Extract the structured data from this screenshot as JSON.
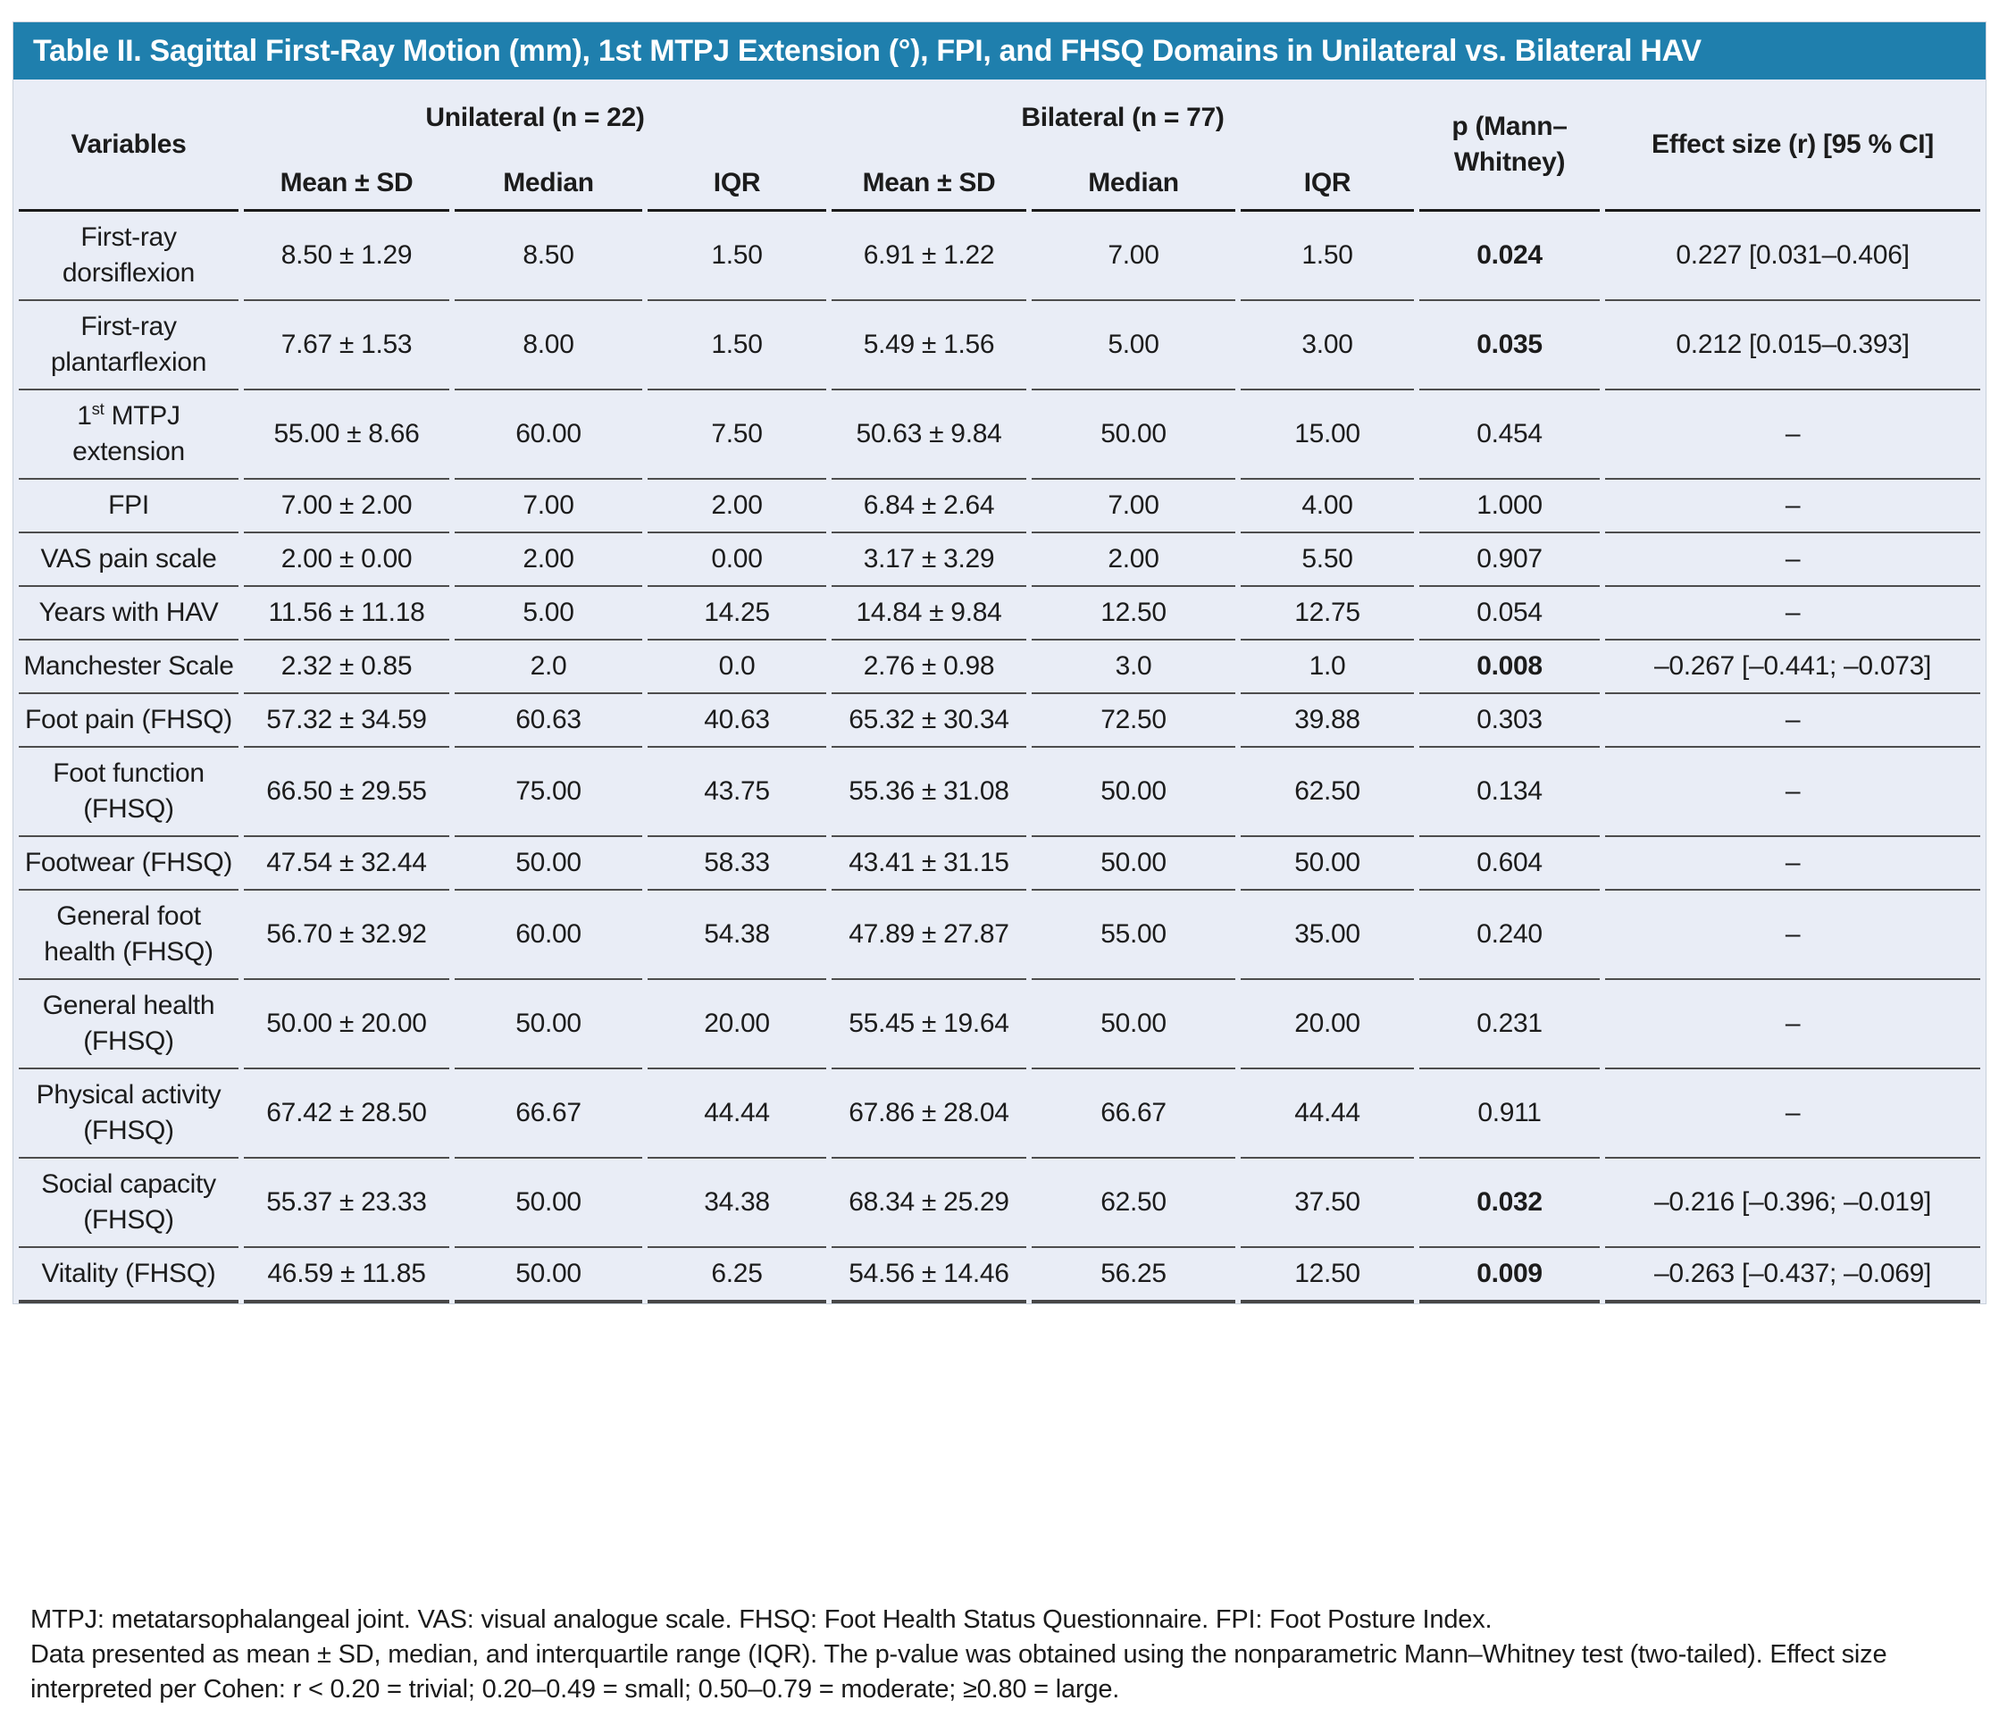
{
  "table": {
    "title": "Table II. Sagittal First-Ray Motion (mm), 1st MTPJ Extension (°), FPI, and FHSQ Domains in Unilateral vs. Bilateral HAV",
    "header": {
      "variables": "Variables",
      "group_unilateral": "Unilateral (n = 22)",
      "group_bilateral": "Bilateral (n = 77)",
      "p_label": "p (Mann–Whitney)",
      "effect_label": "Effect size (r) [95 % CI]",
      "sub": [
        "Mean ± SD",
        "Median",
        "IQR",
        "Mean ± SD",
        "Median",
        "IQR"
      ]
    },
    "rows": [
      {
        "variable": [
          {
            "text": "First-ray dorsiflexion"
          }
        ],
        "cells": [
          "8.50 ± 1.29",
          "8.50",
          "1.50",
          "6.91 ± 1.22",
          "7.00",
          "1.50"
        ],
        "p": "0.024",
        "p_bold": true,
        "effect": "0.227 [0.031–0.406]"
      },
      {
        "variable": [
          {
            "text": "First-ray plantarflexion"
          }
        ],
        "cells": [
          "7.67 ± 1.53",
          "8.00",
          "1.50",
          "5.49 ± 1.56",
          "5.00",
          "3.00"
        ],
        "p": "0.035",
        "p_bold": true,
        "effect": "0.212 [0.015–0.393]"
      },
      {
        "variable": [
          {
            "text": "1"
          },
          {
            "text": "st",
            "sup": true
          },
          {
            "text": " MTPJ extension"
          }
        ],
        "cells": [
          "55.00 ± 8.66",
          "60.00",
          "7.50",
          "50.63 ± 9.84",
          "50.00",
          "15.00"
        ],
        "p": "0.454",
        "p_bold": false,
        "effect": "–"
      },
      {
        "variable": [
          {
            "text": "FPI"
          }
        ],
        "cells": [
          "7.00 ± 2.00",
          "7.00",
          "2.00",
          "6.84 ± 2.64",
          "7.00",
          "4.00"
        ],
        "p": "1.000",
        "p_bold": false,
        "effect": "–"
      },
      {
        "variable": [
          {
            "text": "VAS pain scale"
          }
        ],
        "cells": [
          "2.00 ± 0.00",
          "2.00",
          "0.00",
          "3.17 ± 3.29",
          "2.00",
          "5.50"
        ],
        "p": "0.907",
        "p_bold": false,
        "effect": "–"
      },
      {
        "variable": [
          {
            "text": "Years with HAV"
          }
        ],
        "cells": [
          "11.56 ± 11.18",
          "5.00",
          "14.25",
          "14.84 ± 9.84",
          "12.50",
          "12.75"
        ],
        "p": "0.054",
        "p_bold": false,
        "effect": "–"
      },
      {
        "variable": [
          {
            "text": "Manchester Scale"
          }
        ],
        "cells": [
          "2.32 ± 0.85",
          "2.0",
          "0.0",
          "2.76 ± 0.98",
          "3.0",
          "1.0"
        ],
        "p": "0.008",
        "p_bold": true,
        "effect": "–0.267 [–0.441; –0.073]"
      },
      {
        "variable": [
          {
            "text": "Foot pain (FHSQ)"
          }
        ],
        "cells": [
          "57.32 ± 34.59",
          "60.63",
          "40.63",
          "65.32 ± 30.34",
          "72.50",
          "39.88"
        ],
        "p": "0.303",
        "p_bold": false,
        "effect": "–"
      },
      {
        "variable": [
          {
            "text": "Foot function (FHSQ)"
          }
        ],
        "cells": [
          "66.50 ± 29.55",
          "75.00",
          "43.75",
          "55.36 ± 31.08",
          "50.00",
          "62.50"
        ],
        "p": "0.134",
        "p_bold": false,
        "effect": "–"
      },
      {
        "variable": [
          {
            "text": "Footwear (FHSQ)"
          }
        ],
        "cells": [
          "47.54 ± 32.44",
          "50.00",
          "58.33",
          "43.41 ± 31.15",
          "50.00",
          "50.00"
        ],
        "p": "0.604",
        "p_bold": false,
        "effect": "–"
      },
      {
        "variable": [
          {
            "text": "General foot health (FHSQ)"
          }
        ],
        "cells": [
          "56.70 ± 32.92",
          "60.00",
          "54.38",
          "47.89 ± 27.87",
          "55.00",
          "35.00"
        ],
        "p": "0.240",
        "p_bold": false,
        "effect": "–"
      },
      {
        "variable": [
          {
            "text": "General health (FHSQ)"
          }
        ],
        "cells": [
          "50.00 ± 20.00",
          "50.00",
          "20.00",
          "55.45 ± 19.64",
          "50.00",
          "20.00"
        ],
        "p": "0.231",
        "p_bold": false,
        "effect": "–"
      },
      {
        "variable": [
          {
            "text": "Physical activity (FHSQ)"
          }
        ],
        "cells": [
          "67.42 ± 28.50",
          "66.67",
          "44.44",
          "67.86 ± 28.04",
          "66.67",
          "44.44"
        ],
        "p": "0.911",
        "p_bold": false,
        "effect": "–"
      },
      {
        "variable": [
          {
            "text": "Social capacity (FHSQ)"
          }
        ],
        "cells": [
          "55.37 ± 23.33",
          "50.00",
          "34.38",
          "68.34 ± 25.29",
          "62.50",
          "37.50"
        ],
        "p": "0.032",
        "p_bold": true,
        "effect": "–0.216 [–0.396; –0.019]"
      },
      {
        "variable": [
          {
            "text": "Vitality (FHSQ)"
          }
        ],
        "cells": [
          "46.59 ± 11.85",
          "50.00",
          "6.25",
          "54.56 ± 14.46",
          "56.25",
          "12.50"
        ],
        "p": "0.009",
        "p_bold": true,
        "effect": "–0.263 [–0.437; –0.069]"
      }
    ]
  },
  "footnotes": [
    "MTPJ: metatarsophalangeal joint. VAS: visual analogue scale. FHSQ: Foot Health Status Questionnaire. FPI: Foot Posture Index.",
    "Data presented as mean ± SD, median, and interquartile range (IQR). The p-value was obtained using the nonparametric Mann–Whitney test (two-tailed). Effect size interpreted per Cohen: r < 0.20 = trivial; 0.20–0.49 = small; 0.50–0.79 = moderate; ≥0.80 = large."
  ],
  "colors": {
    "title_bar_bg": "#1f7fad",
    "title_text": "#ffffff",
    "body_bg": "#e9edf6",
    "row_line": "#4d4d4d",
    "text": "#1c1c1c"
  }
}
